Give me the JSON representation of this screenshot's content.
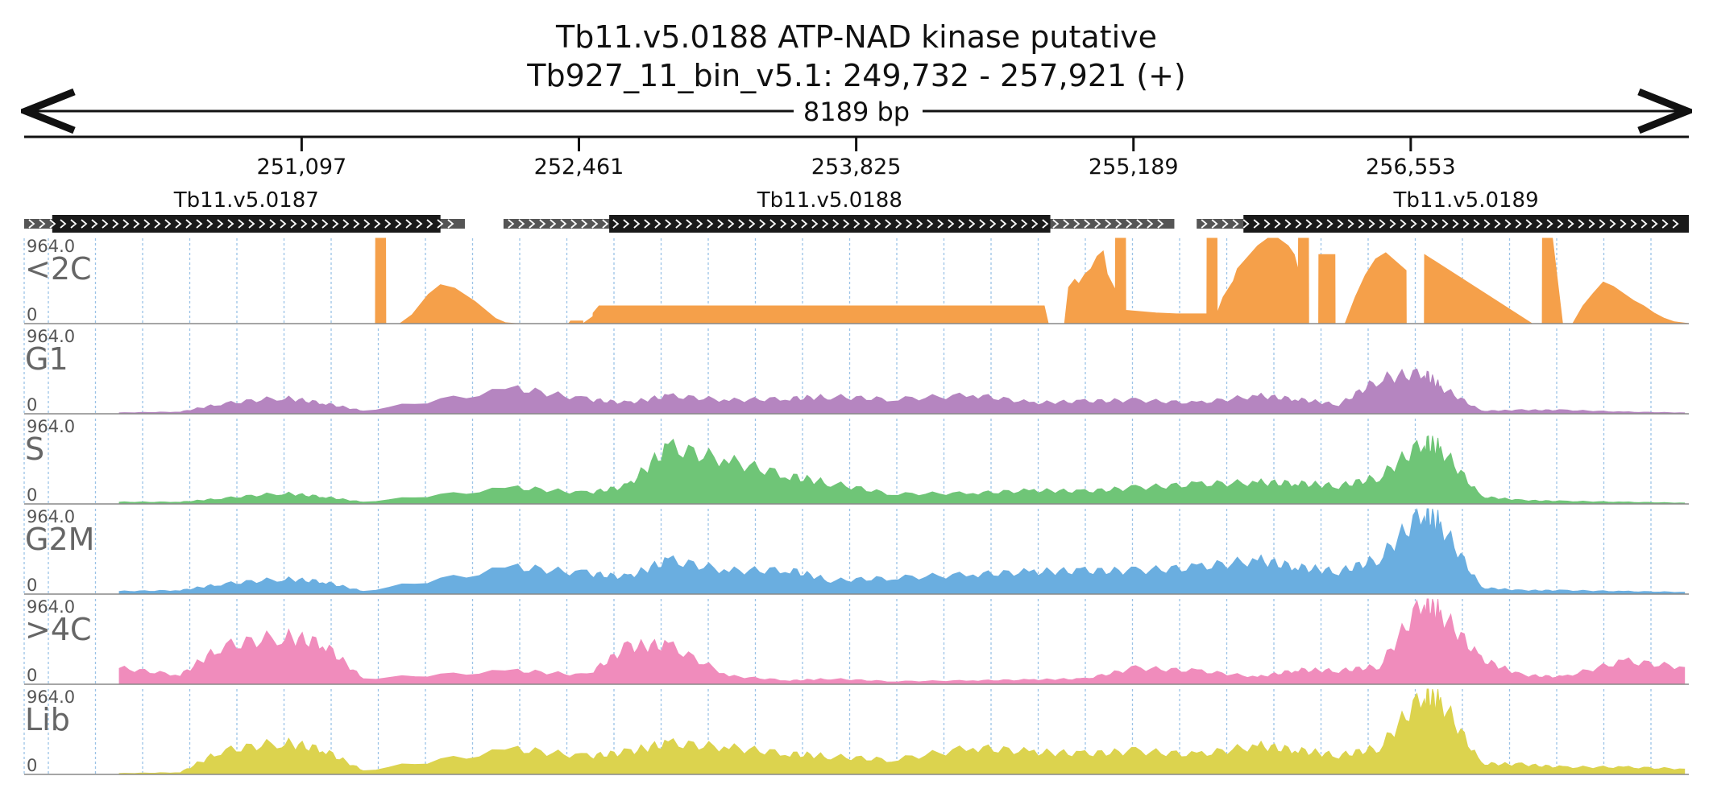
{
  "chart_data": {
    "type": "area",
    "title": "Tb11.v5.0188  ATP-NAD kinase  putative",
    "subtitle": "Tb927_11_bin_v5.1: 249,732 - 257,921 (+)",
    "span_label": "8189 bp",
    "xlim": [
      249732,
      257921
    ],
    "x_ticks": [
      251097,
      252461,
      253825,
      255189,
      256553
    ],
    "x_tick_labels": [
      "251,097",
      "252,461",
      "253,825",
      "255,189",
      "256,553"
    ],
    "genes": [
      {
        "name": "Tb11.v5.0187",
        "utr_start": 249732,
        "cds_start": 249870,
        "cds_end": 251780,
        "utr_end": 251900
      },
      {
        "name": "Tb11.v5.0188",
        "utr_start": 252090,
        "cds_start": 252610,
        "cds_end": 254780,
        "utr_end": 255390
      },
      {
        "name": "Tb11.v5.0189",
        "utr_start": 255500,
        "cds_start": 255730,
        "cds_end": 257921,
        "utr_end": 257921
      }
    ],
    "ylim": [
      0,
      964.0
    ],
    "y_max_label": "964.0",
    "y_min_label": "0",
    "series": [
      {
        "name": "<2C",
        "color": "#f5a04a",
        "x": [
          249732,
          251460,
          251461,
          251510,
          251511,
          251580,
          251640,
          251720,
          251780,
          251850,
          251950,
          252050,
          252100,
          252150,
          252250,
          252350,
          252410,
          252420,
          252480,
          252481,
          252530,
          252531,
          252560,
          254750,
          254770,
          254850,
          254870,
          254900,
          254920,
          254950,
          254980,
          255010,
          255040,
          255060,
          255100,
          255101,
          255150,
          255151,
          255300,
          255400,
          255550,
          255551,
          255600,
          255601,
          255630,
          255680,
          255700,
          255750,
          255800,
          255850,
          255900,
          255950,
          255980,
          256000,
          256001,
          256050,
          256051,
          256100,
          256101,
          256180,
          256181,
          256230,
          256280,
          256330,
          256380,
          256430,
          256530,
          256531,
          256620,
          256621,
          257150,
          257151,
          257200,
          257201,
          257250,
          257300,
          257350,
          257400,
          257450,
          257500,
          257550,
          257600,
          257650,
          257700,
          257750,
          257800,
          257850,
          257921
        ],
        "y": [
          0,
          0,
          964,
          964,
          0,
          0,
          100,
          330,
          440,
          400,
          250,
          60,
          10,
          0,
          0,
          0,
          0,
          30,
          30,
          0,
          80,
          120,
          200,
          200,
          0,
          0,
          410,
          500,
          450,
          560,
          620,
          760,
          820,
          560,
          380,
          964,
          964,
          150,
          120,
          110,
          110,
          964,
          964,
          120,
          300,
          480,
          620,
          750,
          880,
          964,
          964,
          880,
          780,
          600,
          964,
          964,
          0,
          0,
          780,
          780,
          0,
          0,
          300,
          550,
          730,
          800,
          600,
          0,
          0,
          780,
          0,
          0,
          0,
          964,
          964,
          0,
          0,
          200,
          340,
          470,
          420,
          340,
          260,
          200,
          120,
          60,
          20,
          0
        ],
        "line_style": "area"
      },
      {
        "name": "G1",
        "color": "#b585c0"
      },
      {
        "name": "S",
        "color": "#6fc577"
      },
      {
        "name": "G2M",
        "color": "#6aaee0"
      },
      {
        "name": ">4C",
        "color": "#f08cbc"
      },
      {
        "name": "Lib",
        "color": "#dcd34e"
      }
    ],
    "profile_note_values": {
      "G1": {
        "x": [
          250200,
          250500,
          250700,
          251000,
          251200,
          251400,
          252161,
          252500,
          252700,
          252900,
          253200,
          253500,
          253700,
          254000,
          254400,
          254700,
          254950,
          255200,
          255500,
          255800,
          256000,
          256200,
          256400,
          256620,
          256700,
          256900,
          257100,
          257300,
          257600,
          257900
        ],
        "y": [
          10,
          20,
          110,
          180,
          120,
          30,
          280,
          160,
          120,
          200,
          150,
          170,
          190,
          160,
          210,
          120,
          140,
          150,
          120,
          200,
          160,
          100,
          390,
          460,
          300,
          30,
          40,
          40,
          20,
          10
        ]
      },
      "S": {
        "x": [
          250200,
          250500,
          250700,
          251000,
          251200,
          251400,
          252161,
          252500,
          252700,
          252900,
          253200,
          253500,
          253700,
          254000,
          254400,
          254700,
          254950,
          255200,
          255500,
          255800,
          256000,
          256200,
          256400,
          256620,
          256700,
          256900,
          257100,
          257300,
          257600,
          257900
        ],
        "y": [
          20,
          20,
          60,
          120,
          80,
          20,
          180,
          120,
          200,
          640,
          480,
          310,
          230,
          110,
          120,
          150,
          140,
          180,
          220,
          240,
          230,
          200,
          300,
          700,
          620,
          80,
          40,
          30,
          20,
          10
        ]
      },
      "G2M": {
        "x": [
          250200,
          250500,
          250700,
          251000,
          251200,
          251400,
          252161,
          252500,
          252700,
          252900,
          253200,
          253500,
          253700,
          254000,
          254400,
          254700,
          254950,
          255200,
          255500,
          255800,
          256000,
          256200,
          256400,
          256620,
          256700,
          256900,
          257100,
          257300,
          257600,
          257900
        ],
        "y": [
          30,
          40,
          110,
          170,
          140,
          30,
          300,
          230,
          190,
          380,
          260,
          270,
          150,
          180,
          220,
          250,
          260,
          260,
          300,
          380,
          300,
          250,
          400,
          940,
          780,
          70,
          40,
          40,
          30,
          20
        ]
      },
      ">4C": {
        "x": [
          250200,
          250500,
          250700,
          251000,
          251200,
          251400,
          252161,
          252500,
          252700,
          252900,
          253200,
          253500,
          253700,
          254000,
          254400,
          254700,
          254950,
          255200,
          255500,
          255800,
          256000,
          256200,
          256400,
          256620,
          256700,
          256900,
          257100,
          257300,
          257600,
          257900
        ],
        "y": [
          180,
          100,
          420,
          540,
          460,
          60,
          150,
          100,
          420,
          440,
          90,
          40,
          60,
          30,
          40,
          50,
          60,
          180,
          150,
          80,
          160,
          150,
          200,
          964,
          800,
          280,
          100,
          80,
          260,
          190
        ]
      },
      "Lib": {
        "x": [
          250200,
          250500,
          250700,
          251000,
          251200,
          251400,
          252161,
          252500,
          252700,
          252900,
          253200,
          253500,
          253700,
          254000,
          254400,
          254700,
          254950,
          255200,
          255500,
          255800,
          256000,
          256200,
          256400,
          256620,
          256700,
          256900,
          257100,
          257300,
          257600,
          257900
        ],
        "y": [
          10,
          20,
          260,
          360,
          280,
          40,
          280,
          200,
          250,
          350,
          300,
          230,
          200,
          160,
          300,
          250,
          230,
          260,
          220,
          320,
          270,
          210,
          300,
          910,
          830,
          120,
          110,
          80,
          80,
          60
        ]
      }
    },
    "grid": true,
    "legend": "none"
  }
}
